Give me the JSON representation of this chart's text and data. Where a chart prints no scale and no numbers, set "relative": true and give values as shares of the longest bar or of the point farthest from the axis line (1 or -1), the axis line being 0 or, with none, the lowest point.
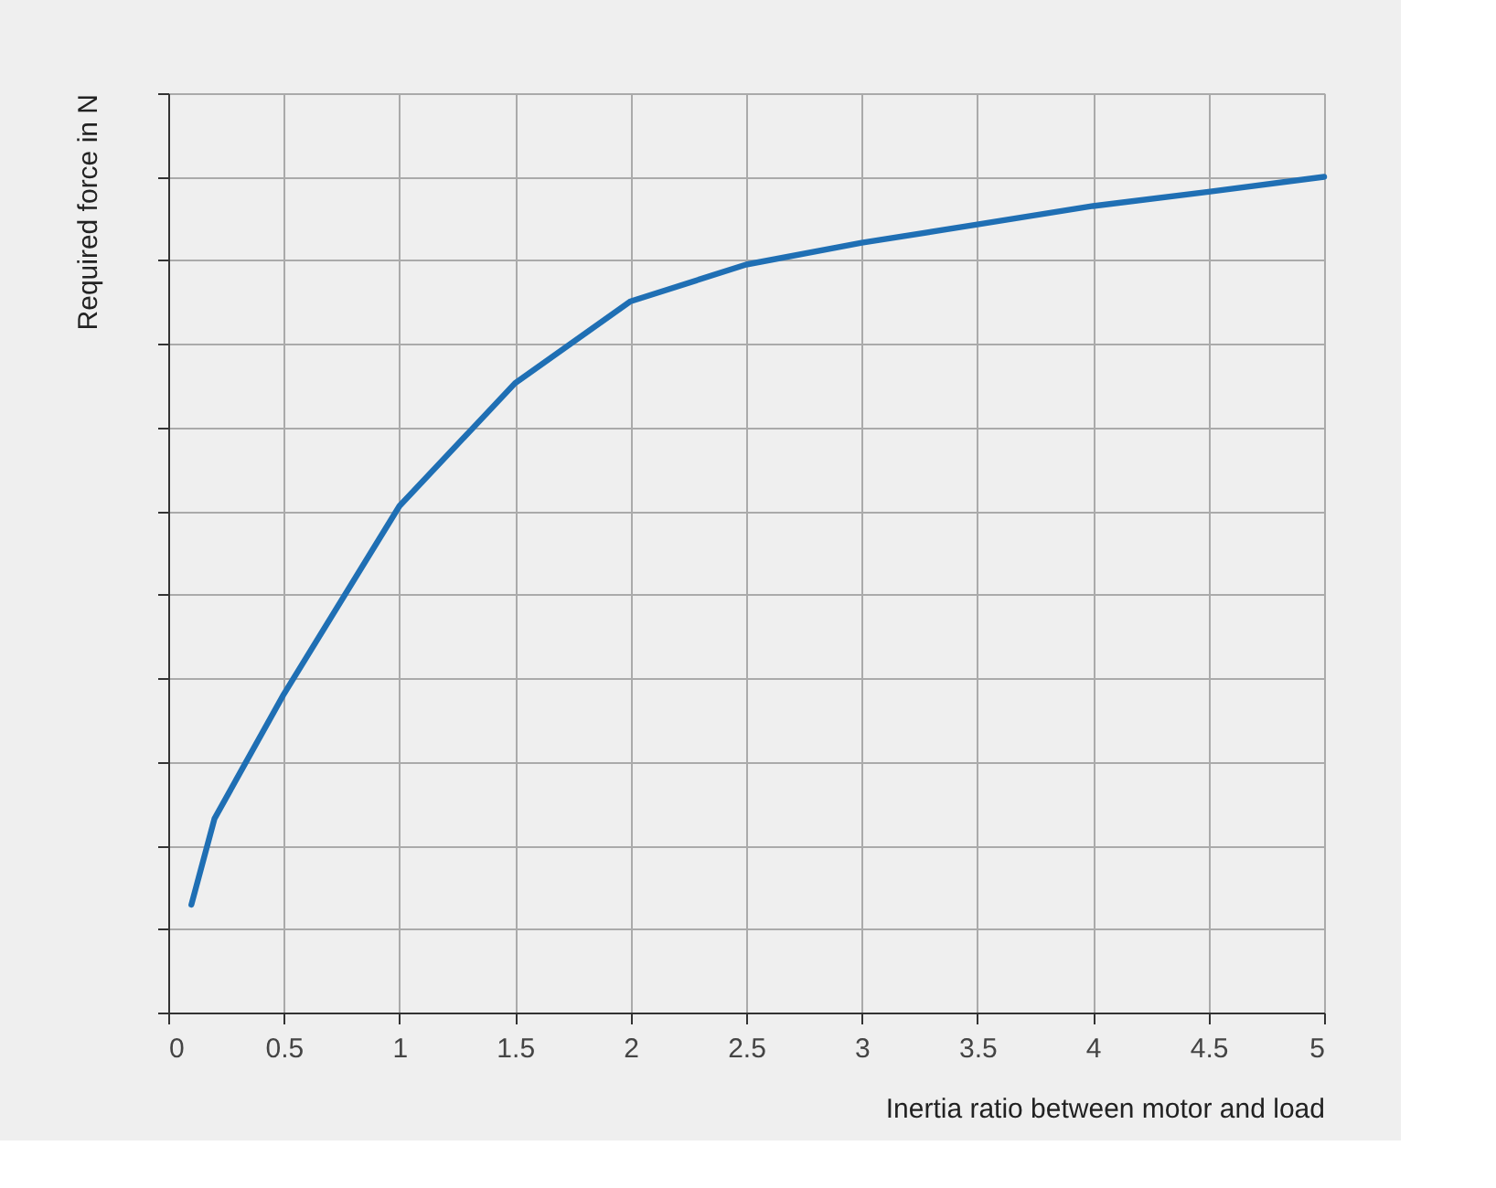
{
  "chart_data": {
    "type": "line",
    "relative": true,
    "xlabel": "Inertia ratio between motor and load",
    "ylabel": "Required force in N",
    "x": [
      0.1,
      0.2,
      0.5,
      1,
      1.5,
      2,
      2.5,
      3,
      3.5,
      4,
      4.5,
      5
    ],
    "series": [
      {
        "color": "#1f6fb4",
        "values": [
          0.129,
          0.232,
          0.381,
          0.606,
          0.753,
          0.851,
          0.895,
          0.921,
          0.943,
          0.965,
          0.982,
          1.0
        ]
      }
    ],
    "xlim": [
      0,
      5
    ],
    "xticks": [
      0,
      0.5,
      1,
      1.5,
      2,
      2.5,
      3,
      3.5,
      4,
      4.5,
      5
    ],
    "grid": true,
    "line_style": "solid",
    "marker": "none"
  }
}
